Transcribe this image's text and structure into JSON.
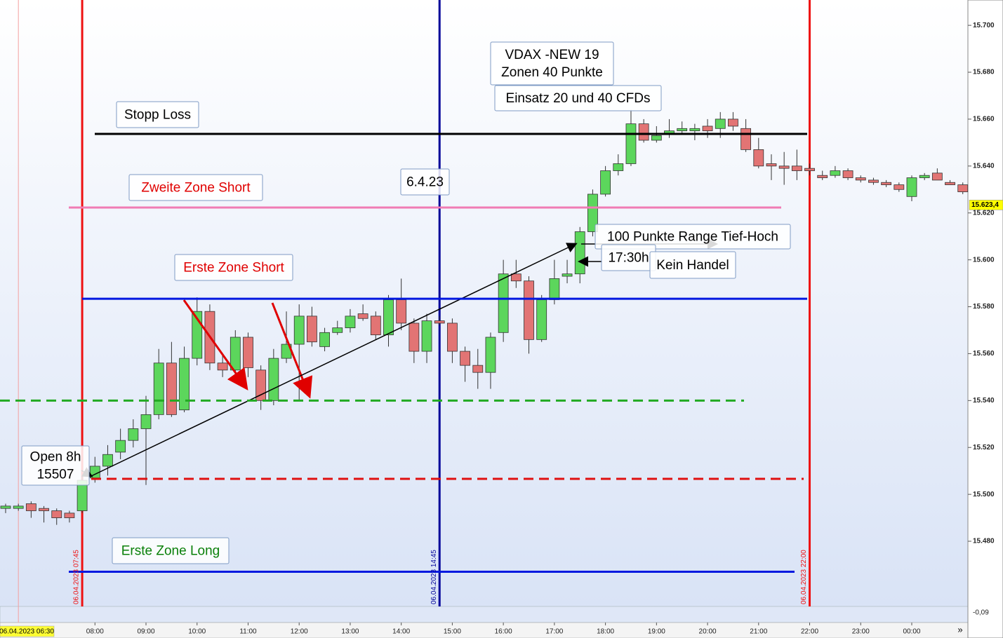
{
  "chart_data": {
    "type": "candlestick",
    "x": [
      6.25,
      6.5,
      6.75,
      7,
      7.25,
      7.5,
      7.75,
      8,
      8.25,
      8.5,
      8.75,
      9,
      9.25,
      9.5,
      9.75,
      10,
      10.25,
      10.5,
      10.75,
      11,
      11.25,
      11.5,
      11.75,
      12,
      12.25,
      12.5,
      12.75,
      13,
      13.25,
      13.5,
      13.75,
      14,
      14.25,
      14.5,
      14.75,
      15,
      15.25,
      15.5,
      15.75,
      16,
      16.25,
      16.5,
      16.75,
      17,
      17.25,
      17.5,
      17.75,
      18,
      18.25,
      18.5,
      18.75,
      19,
      19.25,
      19.5,
      19.75,
      20,
      20.25,
      20.5,
      20.75,
      21,
      21.25,
      21.5,
      21.75,
      22,
      22.25,
      22.5,
      22.75,
      23,
      23.25,
      23.5,
      23.75,
      24,
      24.25,
      24.5,
      24.75,
      25
    ],
    "open": [
      15494,
      15494,
      15496,
      15494,
      15493,
      15492,
      15493,
      15507,
      15512,
      15518,
      15523,
      15528,
      15534,
      15556,
      15536,
      15558,
      15578,
      15556,
      15553,
      15567,
      15553,
      15540,
      15558,
      15564,
      15576,
      15563,
      15569,
      15571,
      15577,
      15576,
      15568,
      15583,
      15573,
      15561,
      15574,
      15573,
      15561,
      15555,
      15552,
      15569,
      15594,
      15591,
      15566,
      15583,
      15593,
      15594,
      15612,
      15628,
      15638,
      15641,
      15658,
      15651,
      15654,
      15655,
      15655,
      15657,
      15656,
      15660,
      15656,
      15647,
      15641,
      15640,
      15640,
      15639,
      15636,
      15636,
      15638,
      15635,
      15634,
      15633,
      15632,
      15627,
      15635,
      15637,
      15633,
      15632
    ],
    "high": [
      15496,
      15496,
      15497,
      15495,
      15494,
      15493,
      15508,
      15516,
      15521,
      15528,
      15532,
      15542,
      15562,
      15565,
      15563,
      15584,
      15581,
      15560,
      15570,
      15569,
      15555,
      15562,
      15578,
      15581,
      15580,
      15571,
      15574,
      15579,
      15581,
      15578,
      15585,
      15592,
      15575,
      15577,
      15576,
      15575,
      15563,
      15562,
      15569,
      15600,
      15600,
      15593,
      15585,
      15600,
      15600,
      15614,
      15630,
      15640,
      15645,
      15664,
      15660,
      15657,
      15660,
      15659,
      15658,
      15660,
      15663,
      15663,
      15660,
      15652,
      15645,
      15646,
      15647,
      15641,
      15638,
      15640,
      15639,
      15636,
      15635,
      15634,
      15633,
      15636,
      15637,
      15639,
      15634,
      15633
    ],
    "low": [
      15492,
      15493,
      15490,
      15488,
      15487,
      15488,
      15492,
      15505,
      15508,
      15515,
      15520,
      15504,
      15532,
      15533,
      15535,
      15555,
      15553,
      15550,
      15550,
      15550,
      15536,
      15538,
      15556,
      15540,
      15563,
      15561,
      15568,
      15569,
      15574,
      15566,
      15563,
      15570,
      15556,
      15556,
      15572,
      15556,
      15548,
      15545,
      15545,
      15565,
      15588,
      15560,
      15565,
      15581,
      15590,
      15590,
      15610,
      15627,
      15636,
      15640,
      15650,
      15650,
      15652,
      15654,
      15651,
      15652,
      15652,
      15655,
      15646,
      15639,
      15634,
      15632,
      15634,
      15636,
      15634,
      15635,
      15634,
      15633,
      15632,
      15631,
      15629,
      15625,
      15634,
      15634,
      15632,
      15628
    ],
    "close": [
      15495,
      15495,
      15493,
      15493,
      15490,
      15490,
      15506,
      15512,
      15517,
      15523,
      15528,
      15534,
      15556,
      15534,
      15558,
      15578,
      15556,
      15553,
      15567,
      15554,
      15540,
      15558,
      15564,
      15576,
      15565,
      15569,
      15571,
      15576,
      15575,
      15568,
      15583,
      15573,
      15561,
      15574,
      15573,
      15561,
      15555,
      15552,
      15567,
      15594,
      15591,
      15566,
      15583,
      15592,
      15594,
      15612,
      15628,
      15638,
      15641,
      15658,
      15651,
      15653,
      15655,
      15656,
      15656,
      15655,
      15660,
      15657,
      15647,
      15640,
      15640,
      15639,
      15638,
      15638,
      15635,
      15638,
      15635,
      15634,
      15633,
      15632,
      15630,
      15635,
      15636,
      15634,
      15632,
      15629
    ],
    "up_color": "#5cd65c",
    "down_color": "#e27474",
    "xlim": [
      6.14,
      25.1
    ],
    "ylim": [
      15452.2,
      15710.8
    ],
    "xticks": [
      {
        "value": 8,
        "label": "08:00"
      },
      {
        "value": 9,
        "label": "09:00"
      },
      {
        "value": 10,
        "label": "10:00"
      },
      {
        "value": 11,
        "label": "11:00"
      },
      {
        "value": 12,
        "label": "12:00"
      },
      {
        "value": 13,
        "label": "13:00"
      },
      {
        "value": 14,
        "label": "14:00"
      },
      {
        "value": 15,
        "label": "15:00"
      },
      {
        "value": 16,
        "label": "16:00"
      },
      {
        "value": 17,
        "label": "17:00"
      },
      {
        "value": 18,
        "label": "18:00"
      },
      {
        "value": 19,
        "label": "19:00"
      },
      {
        "value": 20,
        "label": "20:00"
      },
      {
        "value": 21,
        "label": "21:00"
      },
      {
        "value": 22,
        "label": "22:00"
      },
      {
        "value": 23,
        "label": "23:00"
      },
      {
        "value": 24,
        "label": "00:00"
      }
    ],
    "yticks": [
      {
        "value": 15480,
        "label": "15.480"
      },
      {
        "value": 15500,
        "label": "15.500"
      },
      {
        "value": 15520,
        "label": "15.520"
      },
      {
        "value": 15540,
        "label": "15.540"
      },
      {
        "value": 15560,
        "label": "15.560"
      },
      {
        "value": 15580,
        "label": "15.580"
      },
      {
        "value": 15600,
        "label": "15.600"
      },
      {
        "value": 15620,
        "label": "15.620"
      },
      {
        "value": 15640,
        "label": "15.640"
      },
      {
        "value": 15660,
        "label": "15.660"
      },
      {
        "value": 15680,
        "label": "15.680"
      },
      {
        "value": 15700,
        "label": "15.700"
      }
    ],
    "last_price": {
      "value": 15623.4,
      "label": "15.623,4"
    },
    "cursor": {
      "value": 6.5,
      "label": "06.04.2023 06:30"
    },
    "indicator_label": "-0,09",
    "levels": [
      {
        "value": 15653.7,
        "color": "#000000",
        "dashed": false
      },
      {
        "value": 15622.3,
        "color": "#f07cb4",
        "dashed": false
      },
      {
        "value": 15583.4,
        "color": "#0018e0",
        "dashed": false
      },
      {
        "value": 15540,
        "color": "#22aa22",
        "dashed": true
      },
      {
        "value": 15506.6,
        "color": "#e01010",
        "dashed": true
      },
      {
        "value": 15467,
        "color": "#0018e0",
        "dashed": false
      }
    ],
    "vlines": [
      {
        "value": 7.75,
        "label": "06.04.2023 07:45",
        "color": "#ee1111"
      },
      {
        "value": 14.75,
        "label": "06.04.2023 14:45",
        "color": "#000099"
      },
      {
        "value": 22,
        "label": "06.04.2023 22:00",
        "color": "#ee1111"
      }
    ],
    "annotations": [
      {
        "lines": [
          "Stopp Loss"
        ],
        "color": "#000000"
      },
      {
        "lines": [
          "Zweite Zone Short"
        ],
        "color": "#e00000"
      },
      {
        "lines": [
          "Erste Zone Short"
        ],
        "color": "#e00000"
      },
      {
        "lines": [
          "6.4.23"
        ],
        "color": "#000000"
      },
      {
        "lines": [
          "VDAX -NEW 19",
          "Zonen 40 Punkte"
        ],
        "color": "#000000"
      },
      {
        "lines": [
          "Einsatz 20 und 40 CFDs"
        ],
        "color": "#000000"
      },
      {
        "lines": [
          "100 Punkte Range Tief-Hoch"
        ],
        "color": "#000000"
      },
      {
        "lines": [
          "17:30h"
        ],
        "color": "#000000"
      },
      {
        "lines": [
          "Kein Handel"
        ],
        "color": "#000000"
      },
      {
        "lines": [
          "Open 8h",
          "15507"
        ],
        "color": "#000000"
      },
      {
        "lines": [
          "Erste Zone Long"
        ],
        "color": "#0a800a"
      }
    ]
  }
}
